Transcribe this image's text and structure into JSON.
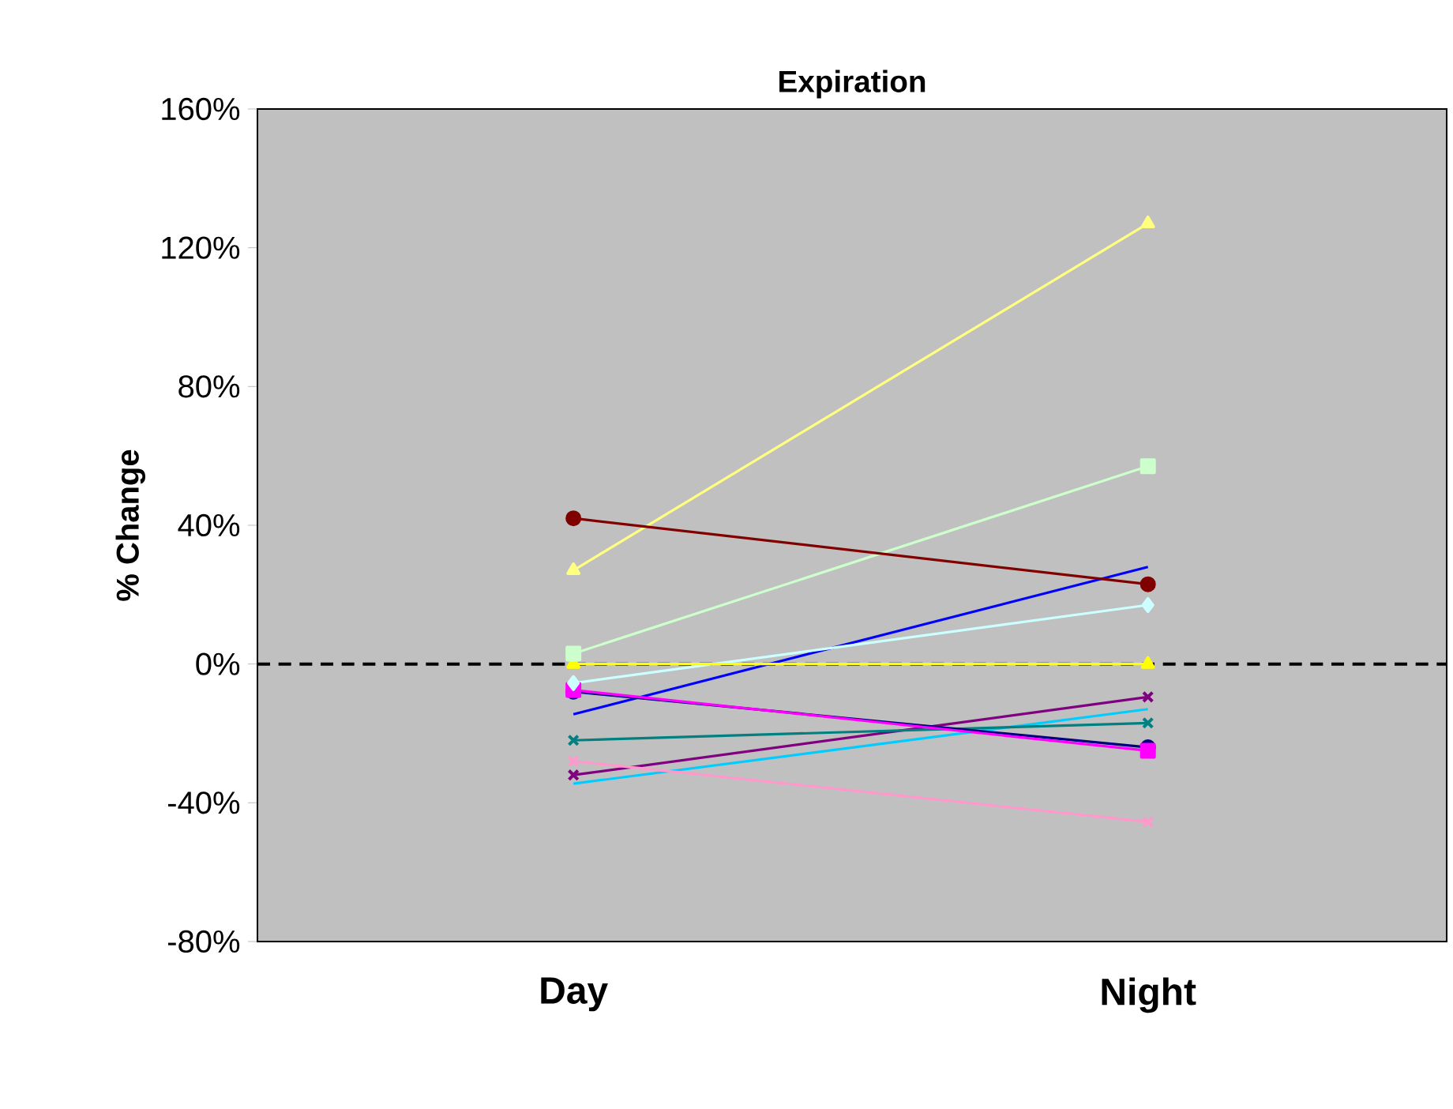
{
  "chart_data": {
    "type": "line",
    "title": "Expiration",
    "ylabel": "% Change",
    "categories": [
      "Day",
      "Night"
    ],
    "ylim": [
      -80,
      160
    ],
    "yticks": [
      {
        "value": -80,
        "label": "-80%"
      },
      {
        "value": -40,
        "label": "-40%"
      },
      {
        "value": 0,
        "label": "0%"
      },
      {
        "value": 40,
        "label": "40%"
      },
      {
        "value": 80,
        "label": "80%"
      },
      {
        "value": 120,
        "label": "120%"
      },
      {
        "value": 160,
        "label": "160%"
      }
    ],
    "ref_lines": [
      {
        "axis": "y",
        "value": 0,
        "color": "#000000",
        "line_style": "dashed"
      }
    ],
    "series": [
      {
        "color": "#800000",
        "marker": "circle",
        "values": [
          42,
          23
        ]
      },
      {
        "color": "#ffff80",
        "marker": "triangle",
        "values": [
          27,
          127
        ]
      },
      {
        "color": "#ccffcc",
        "marker": "square",
        "values": [
          3,
          57
        ]
      },
      {
        "color": "#ffff00",
        "marker": "triangle",
        "values": [
          0,
          0
        ]
      },
      {
        "color": "#ccffff",
        "marker": "diamond",
        "values": [
          -5.5,
          17
        ]
      },
      {
        "color": "#ff00ff",
        "marker": "square",
        "values": [
          -7.5,
          -25
        ]
      },
      {
        "color": "#000080",
        "marker": "circle",
        "values": [
          -8,
          -24
        ]
      },
      {
        "color": "#0000ff",
        "marker": "none",
        "values": [
          -14.5,
          28
        ]
      },
      {
        "color": "#008080",
        "marker": "cross",
        "values": [
          -22,
          -17
        ]
      },
      {
        "color": "#ff99cc",
        "marker": "cross",
        "values": [
          -28,
          -45.5
        ]
      },
      {
        "color": "#800080",
        "marker": "cross",
        "values": [
          -32,
          -9.5
        ]
      },
      {
        "color": "#00ccff",
        "marker": "none",
        "values": [
          -34.5,
          -13
        ]
      }
    ]
  }
}
